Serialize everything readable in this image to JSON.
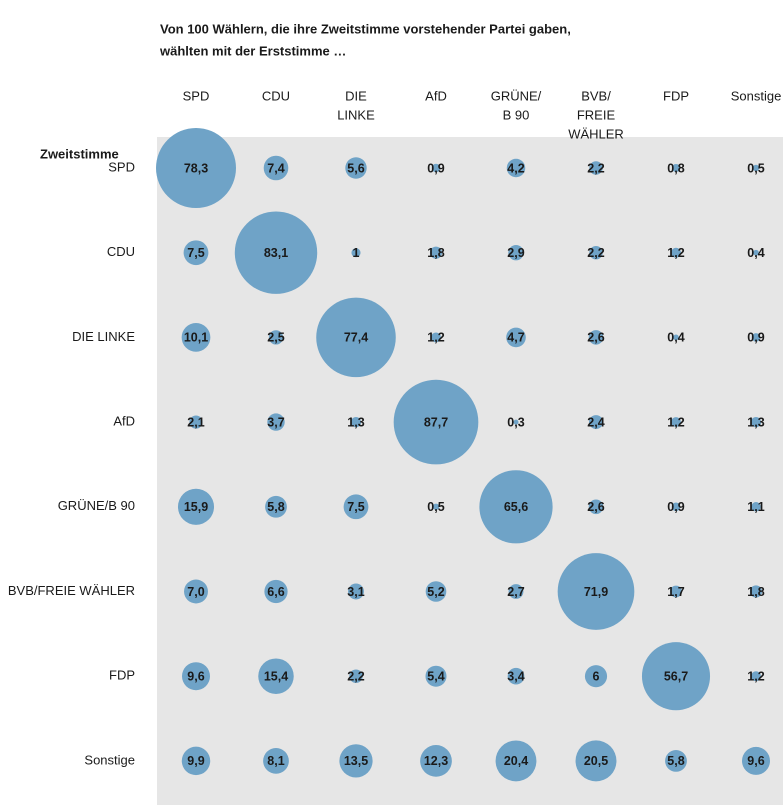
{
  "chart_data": {
    "type": "bubble",
    "title": [
      "Von 100 Wählern, die ihre Zweitstimme vorstehender Partei gaben,",
      "wählten mit der Erststimme …"
    ],
    "row_axis_label": "Zweitstimme",
    "categories": [
      [
        "SPD"
      ],
      [
        "CDU"
      ],
      [
        "DIE",
        "LINKE"
      ],
      [
        "AfD"
      ],
      [
        "GRÜNE/",
        "B 90"
      ],
      [
        "BVB/",
        "FREIE",
        "WÄHLER"
      ],
      [
        "FDP"
      ],
      [
        "Sonstige"
      ]
    ],
    "color": "#6fa3c7",
    "series": [
      {
        "name": "SPD",
        "values": [
          78.3,
          7.4,
          5.6,
          0.9,
          4.2,
          2.2,
          0.8,
          0.5
        ],
        "value_labels": [
          "78,3",
          "7,4",
          "5,6",
          "0,9",
          "4,2",
          "2,2",
          "0,8",
          "0,5"
        ]
      },
      {
        "name": "CDU",
        "values": [
          7.5,
          83.1,
          1,
          1.8,
          2.9,
          2.2,
          1.2,
          0.4
        ],
        "value_labels": [
          "7,5",
          "83,1",
          "1",
          "1,8",
          "2,9",
          "2,2",
          "1,2",
          "0,4"
        ]
      },
      {
        "name": "DIE LINKE",
        "values": [
          10.1,
          2.5,
          77.4,
          1.2,
          4.7,
          2.6,
          0.4,
          0.9
        ],
        "value_labels": [
          "10,1",
          "2,5",
          "77,4",
          "1,2",
          "4,7",
          "2,6",
          "0,4",
          "0,9"
        ]
      },
      {
        "name": "AfD",
        "values": [
          2.1,
          3.7,
          1.3,
          87.7,
          0.3,
          2.4,
          1.2,
          1.3
        ],
        "value_labels": [
          "2,1",
          "3,7",
          "1,3",
          "87,7",
          "0,3",
          "2,4",
          "1,2",
          "1,3"
        ]
      },
      {
        "name": "GRÜNE/B 90",
        "values": [
          15.9,
          5.8,
          7.5,
          0.5,
          65.6,
          2.6,
          0.9,
          1.1
        ],
        "value_labels": [
          "15,9",
          "5,8",
          "7,5",
          "0,5",
          "65,6",
          "2,6",
          "0,9",
          "1,1"
        ]
      },
      {
        "name": "BVB/FREIE WÄHLER",
        "values": [
          7.0,
          6.6,
          3.1,
          5.2,
          2.7,
          71.9,
          1.7,
          1.8
        ],
        "value_labels": [
          "7,0",
          "6,6",
          "3,1",
          "5,2",
          "2,7",
          "71,9",
          "1,7",
          "1,8"
        ]
      },
      {
        "name": "FDP",
        "values": [
          9.6,
          15.4,
          2.2,
          5.4,
          3.4,
          6,
          56.7,
          1.2
        ],
        "value_labels": [
          "9,6",
          "15,4",
          "2,2",
          "5,4",
          "3,4",
          "6",
          "56,7",
          "1,2"
        ]
      },
      {
        "name": "Sonstige",
        "values": [
          9.9,
          8.1,
          13.5,
          12.3,
          20.4,
          20.5,
          5.8,
          9.6
        ],
        "value_labels": [
          "9,9",
          "8,1",
          "13,5",
          "12,3",
          "20,4",
          "20,5",
          "5,8",
          "9,6"
        ]
      }
    ]
  }
}
